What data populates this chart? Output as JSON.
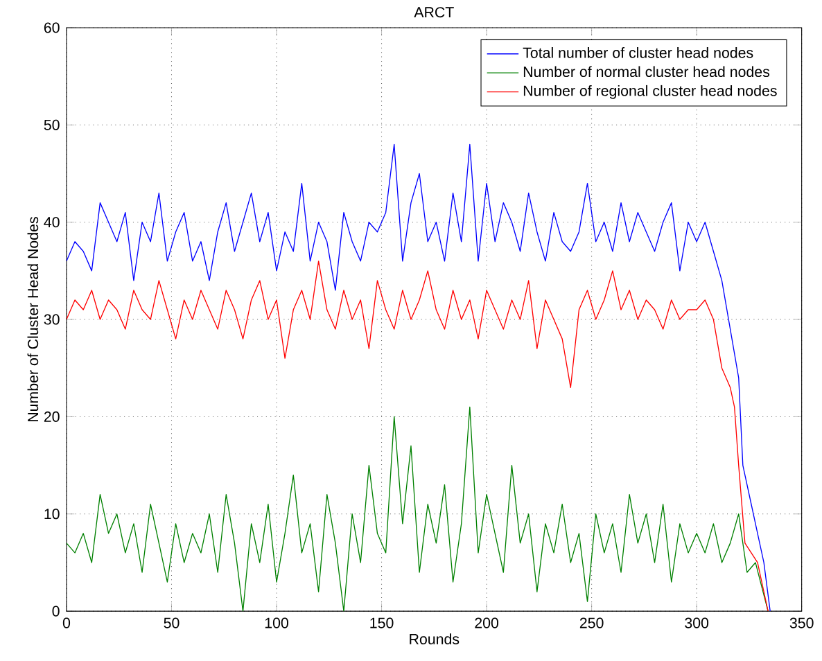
{
  "chart_data": {
    "type": "line",
    "title": "ARCT",
    "xlabel": "Rounds",
    "ylabel": "Number of Cluster Head Nodes",
    "xlim": [
      0,
      350
    ],
    "ylim": [
      0,
      60
    ],
    "xticks": [
      0,
      50,
      100,
      150,
      200,
      250,
      300,
      350
    ],
    "yticks": [
      0,
      10,
      20,
      30,
      40,
      50,
      60
    ],
    "grid": true,
    "legend": "top right",
    "series": [
      {
        "name": "Total number of cluster head nodes",
        "color": "#0000ff",
        "x": [
          0,
          4,
          8,
          12,
          16,
          20,
          24,
          28,
          32,
          36,
          40,
          44,
          48,
          52,
          56,
          60,
          64,
          68,
          72,
          76,
          80,
          84,
          88,
          92,
          96,
          100,
          104,
          108,
          112,
          116,
          120,
          124,
          128,
          132,
          136,
          140,
          144,
          148,
          152,
          156,
          160,
          164,
          168,
          172,
          176,
          180,
          184,
          188,
          192,
          196,
          200,
          204,
          208,
          212,
          216,
          220,
          224,
          228,
          232,
          236,
          240,
          244,
          248,
          252,
          256,
          260,
          264,
          268,
          272,
          276,
          280,
          284,
          288,
          292,
          296,
          300,
          304,
          308,
          312,
          316,
          320,
          322,
          326,
          329,
          332,
          335
        ],
        "values": [
          36,
          38,
          37,
          35,
          42,
          40,
          38,
          41,
          34,
          40,
          38,
          43,
          36,
          39,
          41,
          36,
          38,
          34,
          39,
          42,
          37,
          40,
          43,
          38,
          41,
          35,
          39,
          37,
          44,
          36,
          40,
          38,
          33,
          41,
          38,
          36,
          40,
          39,
          41,
          48,
          36,
          42,
          45,
          38,
          40,
          36,
          43,
          38,
          48,
          36,
          44,
          38,
          42,
          40,
          37,
          43,
          39,
          36,
          41,
          38,
          37,
          39,
          44,
          38,
          40,
          37,
          42,
          38,
          41,
          39,
          37,
          40,
          42,
          35,
          40,
          38,
          40,
          37,
          34,
          29,
          24,
          15,
          11,
          8,
          5,
          0
        ]
      },
      {
        "name": "Number of normal cluster head nodes",
        "color": "#008000",
        "x": [
          0,
          4,
          8,
          12,
          16,
          20,
          24,
          28,
          32,
          36,
          40,
          44,
          48,
          52,
          56,
          60,
          64,
          68,
          72,
          76,
          80,
          84,
          88,
          92,
          96,
          100,
          104,
          108,
          112,
          116,
          120,
          124,
          128,
          132,
          136,
          140,
          144,
          148,
          152,
          156,
          160,
          164,
          168,
          172,
          176,
          180,
          184,
          188,
          192,
          196,
          200,
          204,
          208,
          212,
          216,
          220,
          224,
          228,
          232,
          236,
          240,
          244,
          248,
          252,
          256,
          260,
          264,
          268,
          272,
          276,
          280,
          284,
          288,
          292,
          296,
          300,
          304,
          308,
          312,
          316,
          320,
          324,
          328,
          332,
          334
        ],
        "values": [
          7,
          6,
          8,
          5,
          12,
          8,
          10,
          6,
          9,
          4,
          11,
          7,
          3,
          9,
          5,
          8,
          6,
          10,
          4,
          12,
          7,
          0,
          9,
          5,
          11,
          3,
          8,
          14,
          6,
          9,
          2,
          12,
          7,
          0,
          10,
          5,
          15,
          8,
          6,
          20,
          9,
          17,
          4,
          11,
          7,
          13,
          3,
          9,
          21,
          6,
          12,
          8,
          4,
          15,
          7,
          10,
          2,
          9,
          6,
          11,
          5,
          8,
          1,
          10,
          6,
          9,
          4,
          12,
          7,
          10,
          5,
          11,
          3,
          9,
          6,
          8,
          6,
          9,
          5,
          7,
          10,
          4,
          5,
          null,
          0
        ]
      },
      {
        "name": "Number of regional cluster head nodes",
        "color": "#ff0000",
        "x": [
          0,
          4,
          8,
          12,
          16,
          20,
          24,
          28,
          32,
          36,
          40,
          44,
          48,
          52,
          56,
          60,
          64,
          68,
          72,
          76,
          80,
          84,
          88,
          92,
          96,
          100,
          104,
          108,
          112,
          116,
          120,
          124,
          128,
          132,
          136,
          140,
          144,
          148,
          152,
          156,
          160,
          164,
          168,
          172,
          176,
          180,
          184,
          188,
          192,
          196,
          200,
          204,
          208,
          212,
          216,
          220,
          224,
          228,
          232,
          236,
          240,
          244,
          248,
          252,
          256,
          260,
          264,
          268,
          272,
          276,
          280,
          284,
          288,
          292,
          296,
          300,
          304,
          308,
          312,
          316,
          318,
          320,
          323,
          329,
          334
        ],
        "values": [
          30,
          32,
          31,
          33,
          30,
          32,
          31,
          29,
          33,
          31,
          30,
          34,
          31,
          28,
          32,
          30,
          33,
          31,
          29,
          33,
          31,
          28,
          32,
          34,
          30,
          32,
          26,
          31,
          33,
          30,
          36,
          31,
          29,
          33,
          30,
          32,
          27,
          34,
          31,
          29,
          33,
          30,
          32,
          35,
          31,
          29,
          33,
          30,
          32,
          28,
          33,
          31,
          29,
          32,
          30,
          34,
          27,
          32,
          30,
          28,
          23,
          31,
          33,
          30,
          32,
          35,
          31,
          33,
          30,
          32,
          31,
          29,
          32,
          30,
          31,
          31,
          32,
          30,
          25,
          23,
          21,
          15,
          7,
          5,
          0
        ]
      }
    ]
  }
}
